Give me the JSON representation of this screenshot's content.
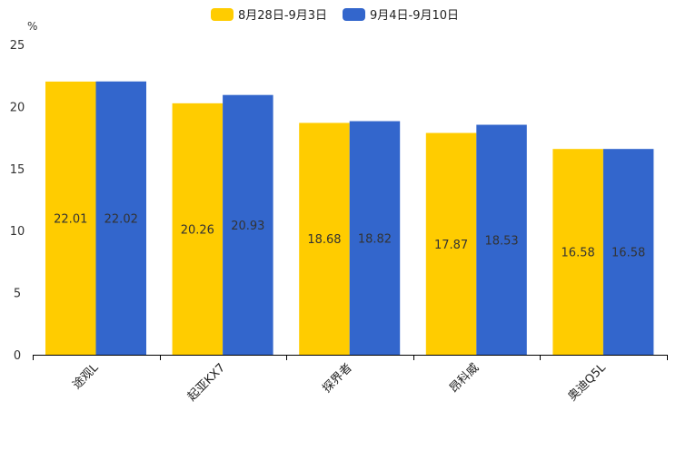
{
  "chart_data": {
    "type": "bar",
    "title": "",
    "xlabel": "",
    "ylabel": "%",
    "ylim": [
      0,
      25
    ],
    "yticks": [
      0,
      5,
      10,
      15,
      20,
      25
    ],
    "grid": false,
    "legend_position": "top-center",
    "categories": [
      "途观L",
      "起亚KX7",
      "探界者",
      "昂科威",
      "奥迪Q5L"
    ],
    "series": [
      {
        "name": "8月28日-9月3日",
        "color": "#FFCC00",
        "values": [
          22.01,
          20.26,
          18.68,
          17.87,
          16.58
        ],
        "labels": [
          "22.01",
          "20.26",
          "18.68",
          "17.87",
          "16.58"
        ]
      },
      {
        "name": "9月4日-9月10日",
        "color": "#3366CC",
        "values": [
          22.02,
          20.93,
          18.82,
          18.53,
          16.58
        ],
        "labels": [
          "22.02",
          "20.93",
          "18.82",
          "18.53",
          "16.58"
        ]
      }
    ]
  }
}
